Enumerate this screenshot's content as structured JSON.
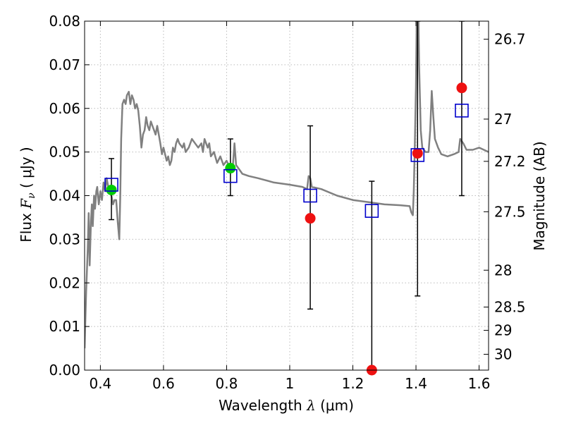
{
  "chart_data": {
    "type": "scatter",
    "title": "",
    "xlabel": {
      "prefix": "Wavelength",
      "symbol": "λ",
      "unit": "(μm)"
    },
    "ylabel": {
      "prefix": "Flux",
      "symbol": "F",
      "subscript": "ν",
      "unit": "( μJy )"
    },
    "y2label": "Magnitude (AB)",
    "xlim": [
      0.35,
      1.63
    ],
    "ylim": [
      0.0,
      0.08
    ],
    "grid": true,
    "x_ticks": [
      0.4,
      0.6,
      0.8,
      1.0,
      1.2,
      1.4,
      1.6
    ],
    "x_tick_labels": [
      "0.4",
      "0.6",
      "0.8",
      "1",
      "1.2",
      "1.4",
      "1.6"
    ],
    "y_ticks": [
      0.0,
      0.01,
      0.02,
      0.03,
      0.04,
      0.05,
      0.06,
      0.07,
      0.08
    ],
    "y_tick_labels": [
      "0.00",
      "0.01",
      "0.02",
      "0.03",
      "0.04",
      "0.05",
      "0.06",
      "0.07",
      "0.08"
    ],
    "y2_ticks": [
      {
        "mag": 26.7,
        "label": "26.7"
      },
      {
        "mag": 27.0,
        "label": "27"
      },
      {
        "mag": 27.2,
        "label": "27.2"
      },
      {
        "mag": 27.5,
        "label": "27.5"
      },
      {
        "mag": 28.0,
        "label": "28"
      },
      {
        "mag": 28.5,
        "label": "28.5"
      },
      {
        "mag": 29.0,
        "label": "29"
      },
      {
        "mag": 30.0,
        "label": "30"
      }
    ],
    "colors": {
      "template": "#808080",
      "model_box": "#0000cc",
      "detection": "#00cc00",
      "nondetection": "#ee1111",
      "errorbar": "#000000",
      "grid": "#bbbbbb"
    },
    "template_spectrum": [
      [
        0.35,
        0.005
      ],
      [
        0.355,
        0.018
      ],
      [
        0.36,
        0.028
      ],
      [
        0.363,
        0.036
      ],
      [
        0.366,
        0.024
      ],
      [
        0.37,
        0.034
      ],
      [
        0.373,
        0.038
      ],
      [
        0.376,
        0.033
      ],
      [
        0.38,
        0.04
      ],
      [
        0.383,
        0.037
      ],
      [
        0.387,
        0.041
      ],
      [
        0.39,
        0.042
      ],
      [
        0.395,
        0.038
      ],
      [
        0.4,
        0.041
      ],
      [
        0.405,
        0.039
      ],
      [
        0.41,
        0.043
      ],
      [
        0.415,
        0.041
      ],
      [
        0.42,
        0.044
      ],
      [
        0.425,
        0.042
      ],
      [
        0.43,
        0.041
      ],
      [
        0.435,
        0.04
      ],
      [
        0.44,
        0.038
      ],
      [
        0.445,
        0.039
      ],
      [
        0.45,
        0.039
      ],
      [
        0.455,
        0.034
      ],
      [
        0.46,
        0.03
      ],
      [
        0.463,
        0.04
      ],
      [
        0.466,
        0.053
      ],
      [
        0.47,
        0.061
      ],
      [
        0.475,
        0.062
      ],
      [
        0.48,
        0.061
      ],
      [
        0.484,
        0.063
      ],
      [
        0.49,
        0.0638
      ],
      [
        0.495,
        0.061
      ],
      [
        0.5,
        0.063
      ],
      [
        0.505,
        0.062
      ],
      [
        0.51,
        0.06
      ],
      [
        0.515,
        0.061
      ],
      [
        0.52,
        0.0595
      ],
      [
        0.525,
        0.056
      ],
      [
        0.53,
        0.051
      ],
      [
        0.535,
        0.054
      ],
      [
        0.54,
        0.055
      ],
      [
        0.545,
        0.058
      ],
      [
        0.55,
        0.056
      ],
      [
        0.555,
        0.055
      ],
      [
        0.56,
        0.057
      ],
      [
        0.565,
        0.056
      ],
      [
        0.57,
        0.055
      ],
      [
        0.575,
        0.054
      ],
      [
        0.58,
        0.056
      ],
      [
        0.585,
        0.054
      ],
      [
        0.59,
        0.052
      ],
      [
        0.595,
        0.0495
      ],
      [
        0.6,
        0.051
      ],
      [
        0.61,
        0.048
      ],
      [
        0.615,
        0.049
      ],
      [
        0.62,
        0.047
      ],
      [
        0.625,
        0.048
      ],
      [
        0.63,
        0.051
      ],
      [
        0.635,
        0.05
      ],
      [
        0.64,
        0.052
      ],
      [
        0.645,
        0.053
      ],
      [
        0.65,
        0.052
      ],
      [
        0.66,
        0.051
      ],
      [
        0.665,
        0.052
      ],
      [
        0.67,
        0.05
      ],
      [
        0.68,
        0.051
      ],
      [
        0.69,
        0.053
      ],
      [
        0.7,
        0.052
      ],
      [
        0.71,
        0.051
      ],
      [
        0.72,
        0.052
      ],
      [
        0.725,
        0.05
      ],
      [
        0.73,
        0.053
      ],
      [
        0.74,
        0.051
      ],
      [
        0.745,
        0.052
      ],
      [
        0.75,
        0.049
      ],
      [
        0.76,
        0.05
      ],
      [
        0.77,
        0.0475
      ],
      [
        0.78,
        0.049
      ],
      [
        0.79,
        0.047
      ],
      [
        0.8,
        0.048
      ],
      [
        0.81,
        0.0465
      ],
      [
        0.82,
        0.047
      ],
      [
        0.825,
        0.052
      ],
      [
        0.83,
        0.047
      ],
      [
        0.84,
        0.046
      ],
      [
        0.85,
        0.045
      ],
      [
        0.87,
        0.0445
      ],
      [
        0.9,
        0.044
      ],
      [
        0.95,
        0.043
      ],
      [
        1.0,
        0.0425
      ],
      [
        1.04,
        0.042
      ],
      [
        1.055,
        0.0415
      ],
      [
        1.06,
        0.0445
      ],
      [
        1.065,
        0.044
      ],
      [
        1.07,
        0.042
      ],
      [
        1.1,
        0.0415
      ],
      [
        1.15,
        0.04
      ],
      [
        1.2,
        0.039
      ],
      [
        1.25,
        0.0385
      ],
      [
        1.3,
        0.038
      ],
      [
        1.35,
        0.0378
      ],
      [
        1.38,
        0.0376
      ],
      [
        1.385,
        0.0362
      ],
      [
        1.39,
        0.0355
      ],
      [
        1.393,
        0.041
      ],
      [
        1.396,
        0.05
      ],
      [
        1.4,
        0.065
      ],
      [
        1.403,
        0.085
      ],
      [
        1.406,
        0.09
      ],
      [
        1.41,
        0.07
      ],
      [
        1.415,
        0.055
      ],
      [
        1.42,
        0.051
      ],
      [
        1.43,
        0.05
      ],
      [
        1.44,
        0.05
      ],
      [
        1.445,
        0.055
      ],
      [
        1.45,
        0.064
      ],
      [
        1.455,
        0.058
      ],
      [
        1.46,
        0.053
      ],
      [
        1.47,
        0.051
      ],
      [
        1.48,
        0.0495
      ],
      [
        1.5,
        0.049
      ],
      [
        1.52,
        0.0495
      ],
      [
        1.535,
        0.05
      ],
      [
        1.54,
        0.053
      ],
      [
        1.55,
        0.052
      ],
      [
        1.56,
        0.0505
      ],
      [
        1.58,
        0.0505
      ],
      [
        1.6,
        0.051
      ],
      [
        1.63,
        0.05
      ]
    ],
    "model_boxes": [
      {
        "x": 0.435,
        "y": 0.0425
      },
      {
        "x": 0.812,
        "y": 0.0445
      },
      {
        "x": 1.065,
        "y": 0.04
      },
      {
        "x": 1.26,
        "y": 0.0365
      },
      {
        "x": 1.405,
        "y": 0.0493
      },
      {
        "x": 1.545,
        "y": 0.0595
      }
    ],
    "detections": [
      {
        "x": 0.435,
        "y": 0.0413,
        "err": [
          0.0345,
          0.0485
        ]
      },
      {
        "x": 0.812,
        "y": 0.0463,
        "err": [
          0.04,
          0.053
        ]
      }
    ],
    "nondetections": [
      {
        "x": 1.065,
        "y": 0.0348,
        "err": [
          0.014,
          0.056
        ]
      },
      {
        "x": 1.26,
        "y": 0.0,
        "err": [
          0.0,
          0.0433
        ]
      },
      {
        "x": 1.405,
        "y": 0.0497,
        "err": [
          0.017,
          0.08
        ]
      },
      {
        "x": 1.545,
        "y": 0.0647,
        "err": [
          0.04,
          0.08
        ]
      }
    ]
  }
}
